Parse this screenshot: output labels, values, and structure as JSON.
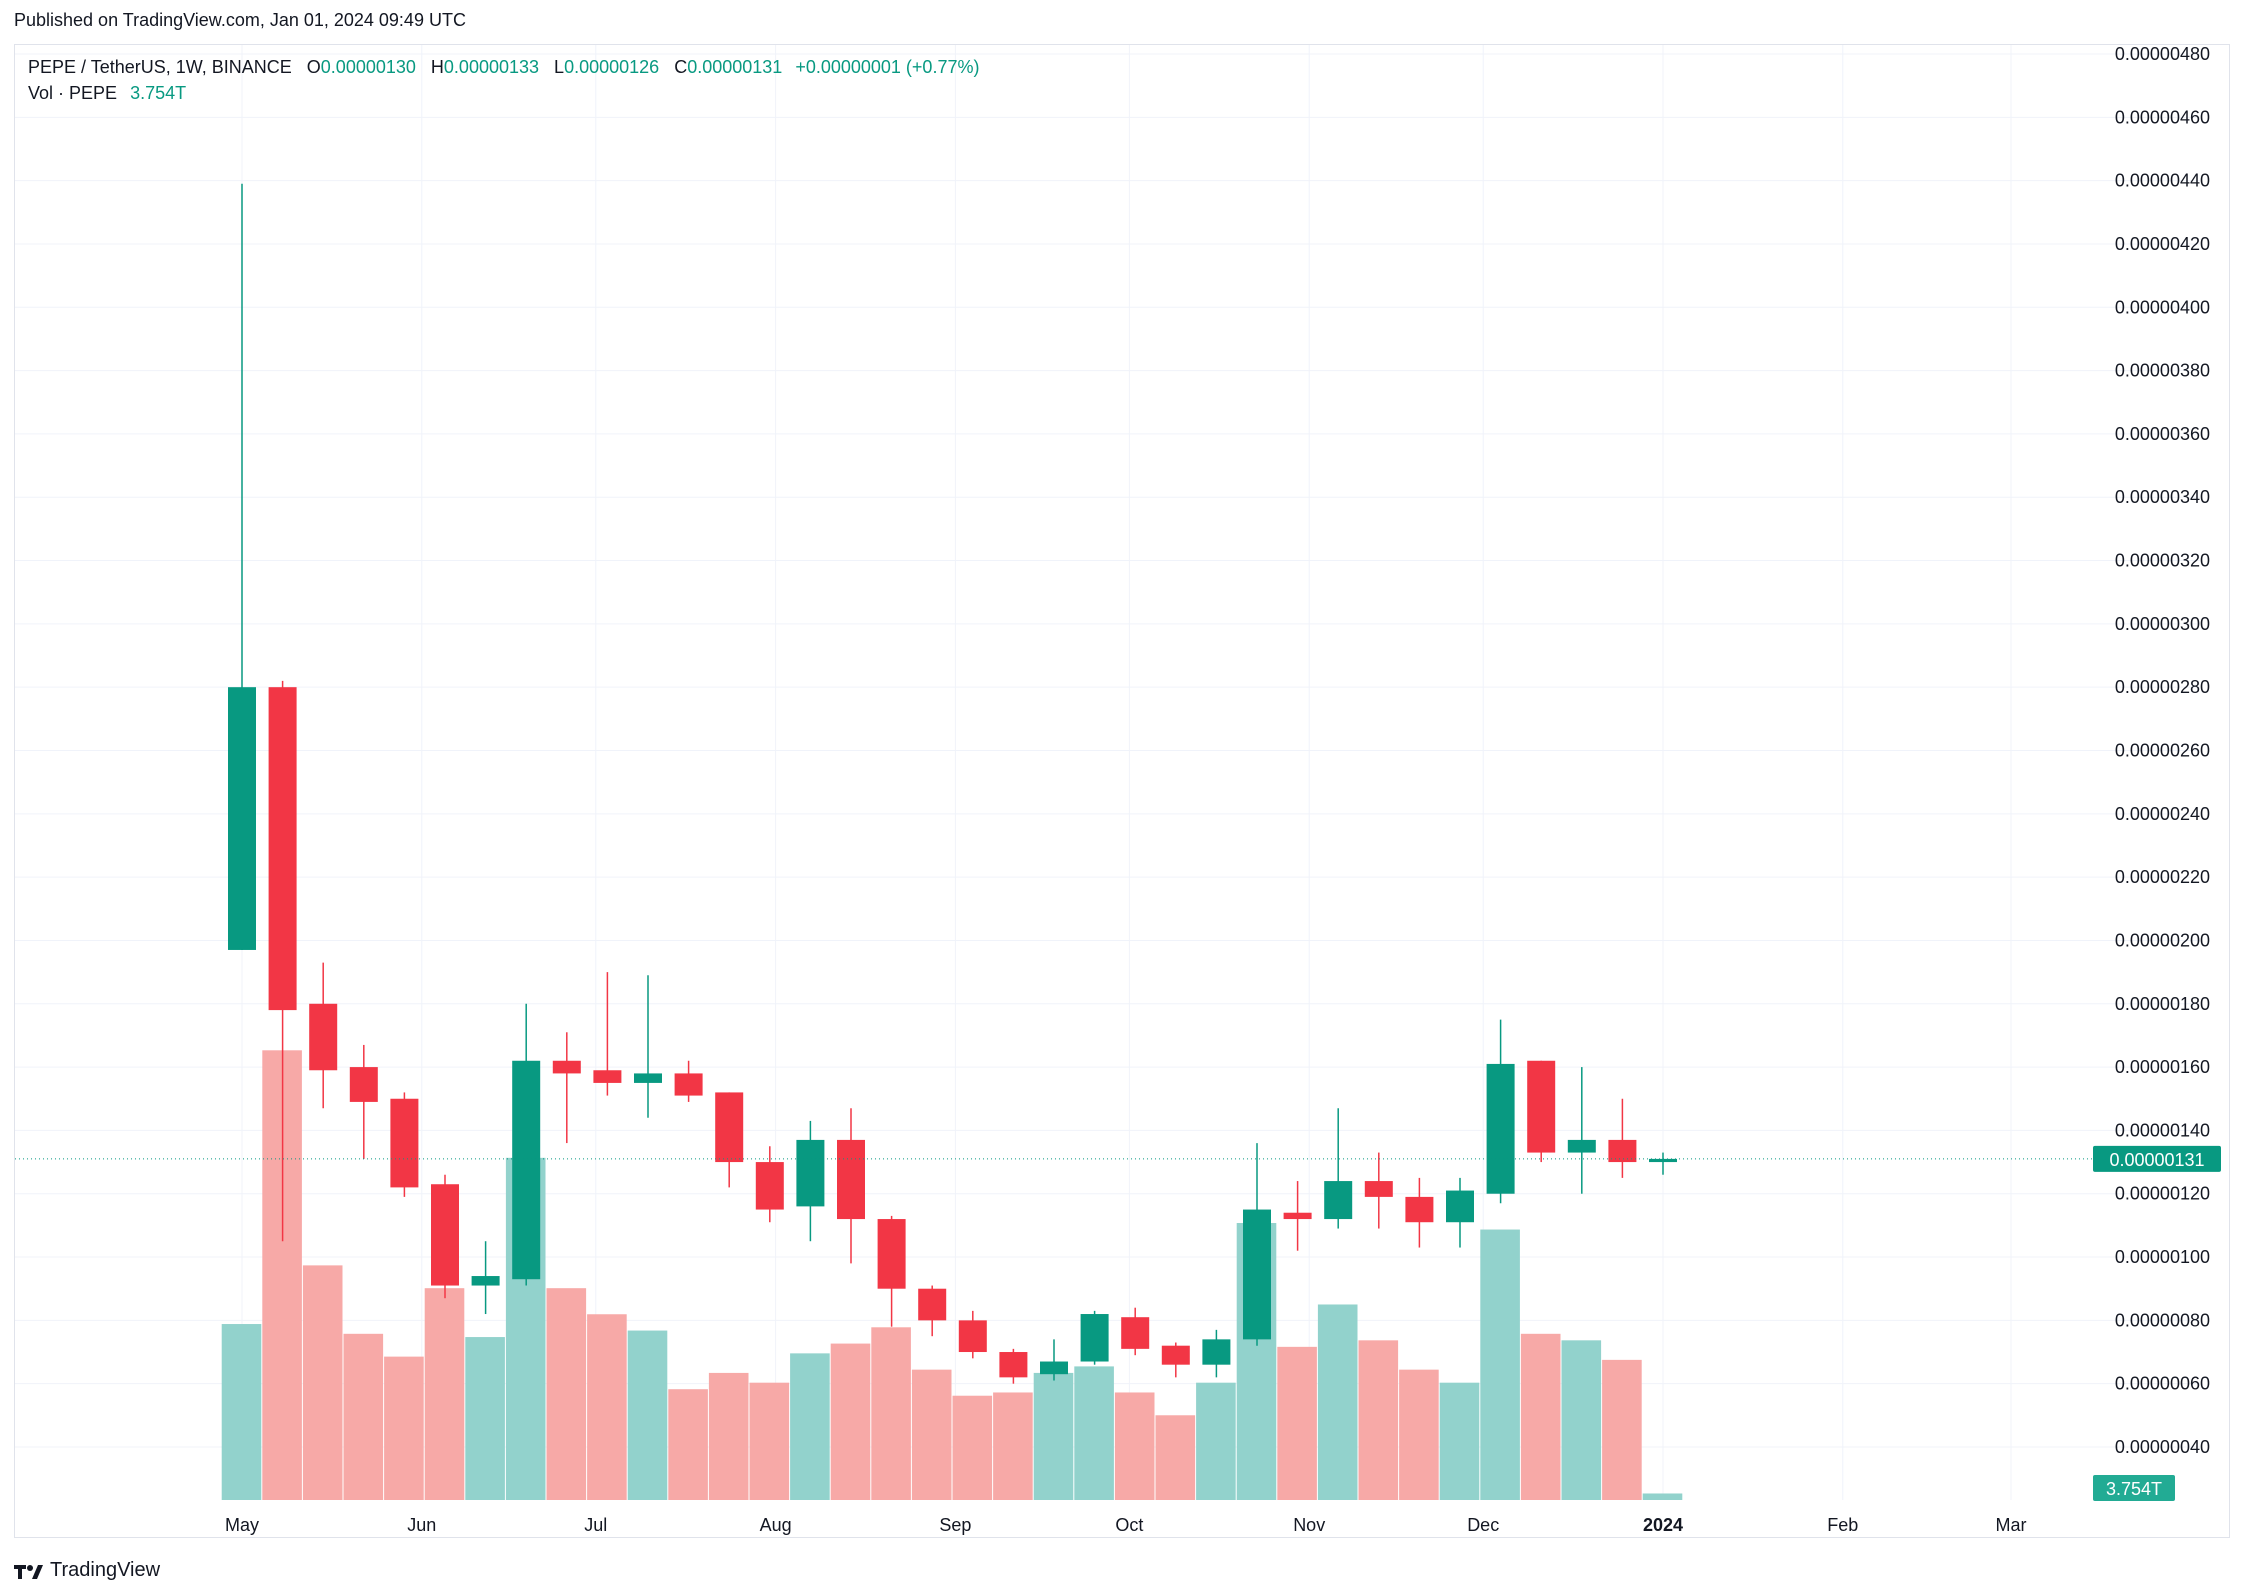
{
  "header": {
    "published": "Published on TradingView.com, Jan 01, 2024 09:49 UTC"
  },
  "legend": {
    "symbol": "PEPE / TetherUS, 1W, BINANCE",
    "open_label": "O",
    "open": "0.00000130",
    "high_label": "H",
    "high": "0.00000133",
    "low_label": "L",
    "low": "0.00000126",
    "close_label": "C",
    "close": "0.00000131",
    "change": "+0.00000001 (+0.77%)",
    "vol_label": "Vol · PEPE",
    "vol_value": "3.754T"
  },
  "footer": {
    "brand": "TradingView"
  },
  "colors": {
    "up": "#089981",
    "down": "#f23645",
    "vol_up": "#92d2cc",
    "vol_down": "#f7a9a7",
    "grid": "#f0f3fa"
  },
  "chart_data": {
    "type": "candlestick",
    "price_scale": {
      "min": 2e-07,
      "max": 4.8e-06,
      "unit": "USDT"
    },
    "y_ticks": [
      "0.00000480",
      "0.00000460",
      "0.00000440",
      "0.00000420",
      "0.00000400",
      "0.00000380",
      "0.00000360",
      "0.00000340",
      "0.00000320",
      "0.00000300",
      "0.00000280",
      "0.00000260",
      "0.00000240",
      "0.00000220",
      "0.00000200",
      "0.00000180",
      "0.00000160",
      "0.00000140",
      "0.00000120",
      "0.00000100",
      "0.00000080",
      "0.00000060",
      "0.00000040"
    ],
    "x_ticks": [
      {
        "label": "May",
        "date": "2023-05-01",
        "bold": false
      },
      {
        "label": "Jun",
        "date": "2023-06-01",
        "bold": false
      },
      {
        "label": "Jul",
        "date": "2023-07-01",
        "bold": false
      },
      {
        "label": "Aug",
        "date": "2023-08-01",
        "bold": false
      },
      {
        "label": "Sep",
        "date": "2023-09-01",
        "bold": false
      },
      {
        "label": "Oct",
        "date": "2023-10-01",
        "bold": false
      },
      {
        "label": "Nov",
        "date": "2023-11-01",
        "bold": false
      },
      {
        "label": "Dec",
        "date": "2023-12-01",
        "bold": false
      },
      {
        "label": "2024",
        "date": "2024-01-01",
        "bold": true
      },
      {
        "label": "Feb",
        "date": "2024-02-01",
        "bold": false
      },
      {
        "label": "Mar",
        "date": "2024-03-01",
        "bold": false
      }
    ],
    "last_price_label": "0.00000131",
    "volume_label": "3.754T",
    "candles_unit": "1e-8 USDT",
    "candles": [
      {
        "date": "2023-05-01",
        "o": 197,
        "h": 439,
        "l": 197,
        "c": 280,
        "v": 5.4
      },
      {
        "date": "2023-05-08",
        "o": 280,
        "h": 282,
        "l": 105,
        "c": 178,
        "v": 13.8
      },
      {
        "date": "2023-05-15",
        "o": 180,
        "h": 193,
        "l": 147,
        "c": 159,
        "v": 7.2
      },
      {
        "date": "2023-05-22",
        "o": 160,
        "h": 167,
        "l": 131,
        "c": 149,
        "v": 5.1
      },
      {
        "date": "2023-05-29",
        "o": 150,
        "h": 152,
        "l": 119,
        "c": 122,
        "v": 4.4
      },
      {
        "date": "2023-06-05",
        "o": 123,
        "h": 126,
        "l": 87,
        "c": 91,
        "v": 6.5
      },
      {
        "date": "2023-06-12",
        "o": 91,
        "h": 105,
        "l": 82,
        "c": 94,
        "v": 5.0
      },
      {
        "date": "2023-06-19",
        "o": 93,
        "h": 180,
        "l": 91,
        "c": 162,
        "v": 10.5
      },
      {
        "date": "2023-06-26",
        "o": 162,
        "h": 171,
        "l": 136,
        "c": 158,
        "v": 6.5
      },
      {
        "date": "2023-07-03",
        "o": 159,
        "h": 190,
        "l": 151,
        "c": 155,
        "v": 5.7
      },
      {
        "date": "2023-07-10",
        "o": 155,
        "h": 189,
        "l": 144,
        "c": 158,
        "v": 5.2
      },
      {
        "date": "2023-07-17",
        "o": 158,
        "h": 162,
        "l": 149,
        "c": 151,
        "v": 3.4
      },
      {
        "date": "2023-07-24",
        "o": 152,
        "h": 152,
        "l": 122,
        "c": 130,
        "v": 3.9
      },
      {
        "date": "2023-07-31",
        "o": 130,
        "h": 135,
        "l": 111,
        "c": 115,
        "v": 3.6
      },
      {
        "date": "2023-08-07",
        "o": 116,
        "h": 143,
        "l": 105,
        "c": 137,
        "v": 4.5
      },
      {
        "date": "2023-08-14",
        "o": 137,
        "h": 147,
        "l": 98,
        "c": 112,
        "v": 4.8
      },
      {
        "date": "2023-08-21",
        "o": 112,
        "h": 113,
        "l": 78,
        "c": 90,
        "v": 5.3
      },
      {
        "date": "2023-08-28",
        "o": 90,
        "h": 91,
        "l": 75,
        "c": 80,
        "v": 4.0
      },
      {
        "date": "2023-09-04",
        "o": 80,
        "h": 83,
        "l": 68,
        "c": 70,
        "v": 3.2
      },
      {
        "date": "2023-09-11",
        "o": 70,
        "h": 71,
        "l": 60,
        "c": 62,
        "v": 3.3
      },
      {
        "date": "2023-09-18",
        "o": 63,
        "h": 74,
        "l": 61,
        "c": 67,
        "v": 3.9
      },
      {
        "date": "2023-09-25",
        "o": 67,
        "h": 83,
        "l": 66,
        "c": 82,
        "v": 4.1
      },
      {
        "date": "2023-10-02",
        "o": 81,
        "h": 84,
        "l": 69,
        "c": 71,
        "v": 3.3
      },
      {
        "date": "2023-10-09",
        "o": 72,
        "h": 73,
        "l": 62,
        "c": 66,
        "v": 2.6
      },
      {
        "date": "2023-10-16",
        "o": 66,
        "h": 77,
        "l": 62,
        "c": 74,
        "v": 3.6
      },
      {
        "date": "2023-10-23",
        "o": 74,
        "h": 136,
        "l": 72,
        "c": 115,
        "v": 8.5
      },
      {
        "date": "2023-10-30",
        "o": 114,
        "h": 124,
        "l": 102,
        "c": 112,
        "v": 4.7
      },
      {
        "date": "2023-11-06",
        "o": 112,
        "h": 147,
        "l": 109,
        "c": 124,
        "v": 6.0
      },
      {
        "date": "2023-11-13",
        "o": 124,
        "h": 133,
        "l": 109,
        "c": 119,
        "v": 4.9
      },
      {
        "date": "2023-11-20",
        "o": 119,
        "h": 125,
        "l": 103,
        "c": 111,
        "v": 4.0
      },
      {
        "date": "2023-11-27",
        "o": 111,
        "h": 125,
        "l": 103,
        "c": 121,
        "v": 3.6
      },
      {
        "date": "2023-12-04",
        "o": 120,
        "h": 175,
        "l": 117,
        "c": 161,
        "v": 8.3
      },
      {
        "date": "2023-12-11",
        "o": 162,
        "h": 162,
        "l": 130,
        "c": 133,
        "v": 5.1
      },
      {
        "date": "2023-12-18",
        "o": 133,
        "h": 160,
        "l": 120,
        "c": 137,
        "v": 4.9
      },
      {
        "date": "2023-12-25",
        "o": 137,
        "h": 150,
        "l": 125,
        "c": 130,
        "v": 4.3
      },
      {
        "date": "2024-01-01",
        "o": 130,
        "h": 133,
        "l": 126,
        "c": 131,
        "v": 0.2
      }
    ]
  }
}
